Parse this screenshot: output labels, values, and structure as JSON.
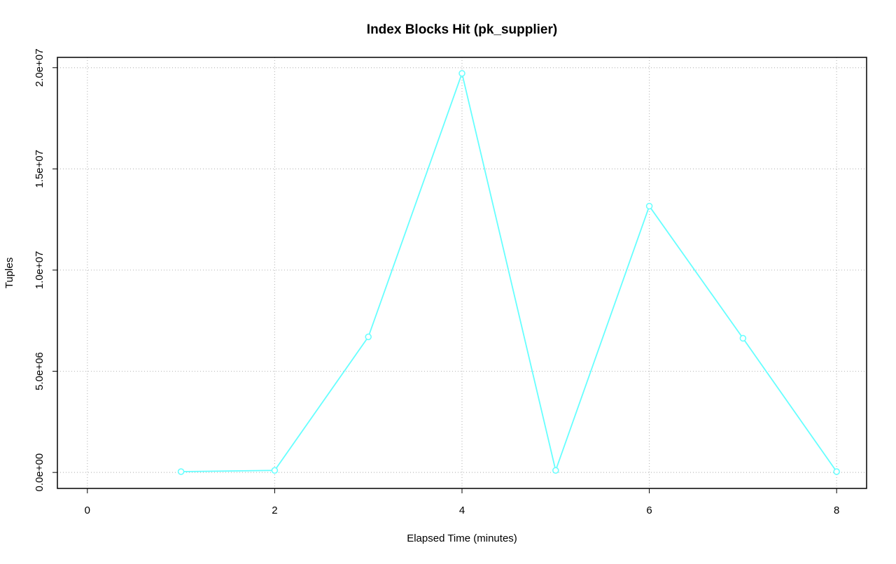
{
  "chart_data": {
    "type": "line",
    "title": "Index Blocks Hit (pk_supplier)",
    "x_label": "Elapsed Time (minutes)",
    "y_label": "Tuples",
    "x": [
      1,
      2,
      3,
      4,
      5,
      6,
      7,
      8
    ],
    "series": [
      {
        "color": "#66ffff",
        "values": [
          40000,
          100000,
          6700000,
          19720000,
          100000,
          13160000,
          6630000,
          40000
        ]
      }
    ],
    "xlim": [
      -0.32,
      8.32
    ],
    "xticks": [
      0,
      2,
      4,
      6,
      8
    ],
    "ylim": [
      -790000,
      20510000
    ],
    "yticks": [
      {
        "value": 0,
        "label": "0.0e+00"
      },
      {
        "value": 5000000,
        "label": "5.0e+06"
      },
      {
        "value": 10000000,
        "label": "1.0e+07"
      },
      {
        "value": 15000000,
        "label": "1.5e+07"
      },
      {
        "value": 20000000,
        "label": "2.0e+07"
      }
    ],
    "grid": true
  }
}
